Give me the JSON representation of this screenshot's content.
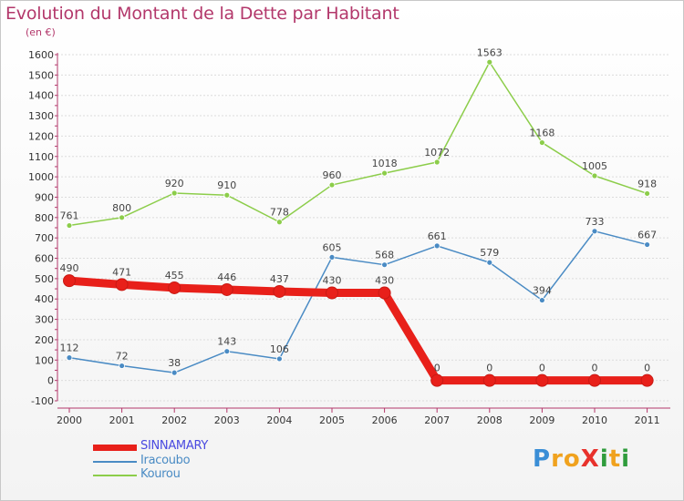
{
  "header": {
    "title": "Evolution du Montant de la Dette par Habitant",
    "subtitle": "(en €)"
  },
  "logo": {
    "text": "ProXiti",
    "letters": [
      {
        "ch": "P",
        "color": "#3a8ed6"
      },
      {
        "ch": "r",
        "color": "#f0a21e"
      },
      {
        "ch": "o",
        "color": "#f0a21e"
      },
      {
        "ch": "X",
        "color": "#e8322c"
      },
      {
        "ch": "i",
        "color": "#2f9c3c"
      },
      {
        "ch": "t",
        "color": "#f0a21e"
      },
      {
        "ch": "i",
        "color": "#2f9c3c"
      }
    ]
  },
  "chart_data": {
    "type": "line",
    "title": "Evolution du Montant de la Dette par Habitant",
    "subtitle": "(en €)",
    "x": [
      "2000",
      "2001",
      "2002",
      "2003",
      "2004",
      "2005",
      "2006",
      "2007",
      "2008",
      "2009",
      "2010",
      "2011"
    ],
    "ylim": [
      -100,
      1600
    ],
    "yticks": [
      -100,
      0,
      100,
      200,
      300,
      400,
      500,
      600,
      700,
      800,
      900,
      1000,
      1100,
      1200,
      1300,
      1400,
      1500,
      1600
    ],
    "grid": "horizontal",
    "legend_position": "bottom-left",
    "series": [
      {
        "name": "SINNAMARY",
        "color": "#e8201a",
        "bold": true,
        "values": [
          490,
          471,
          455,
          446,
          437,
          430,
          430,
          0,
          0,
          0,
          0,
          0
        ]
      },
      {
        "name": "Iracoubo",
        "color": "#4a8bc4",
        "bold": false,
        "values": [
          112,
          72,
          38,
          143,
          106,
          605,
          568,
          661,
          579,
          394,
          733,
          667
        ]
      },
      {
        "name": "Kourou",
        "color": "#8ccd4a",
        "bold": false,
        "values": [
          761,
          800,
          920,
          910,
          778,
          960,
          1018,
          1072,
          1563,
          1168,
          1005,
          918
        ]
      }
    ]
  },
  "legend": {
    "items": [
      {
        "label": "SINNAMARY",
        "color": "#e8201a",
        "text_color": "#4a4ae0"
      },
      {
        "label": "Iracoubo",
        "color": "#4a8bc4",
        "text_color": "#4a8bc4"
      },
      {
        "label": "Kourou",
        "color": "#8ccd4a",
        "text_color": "#4a8bc4"
      }
    ]
  }
}
